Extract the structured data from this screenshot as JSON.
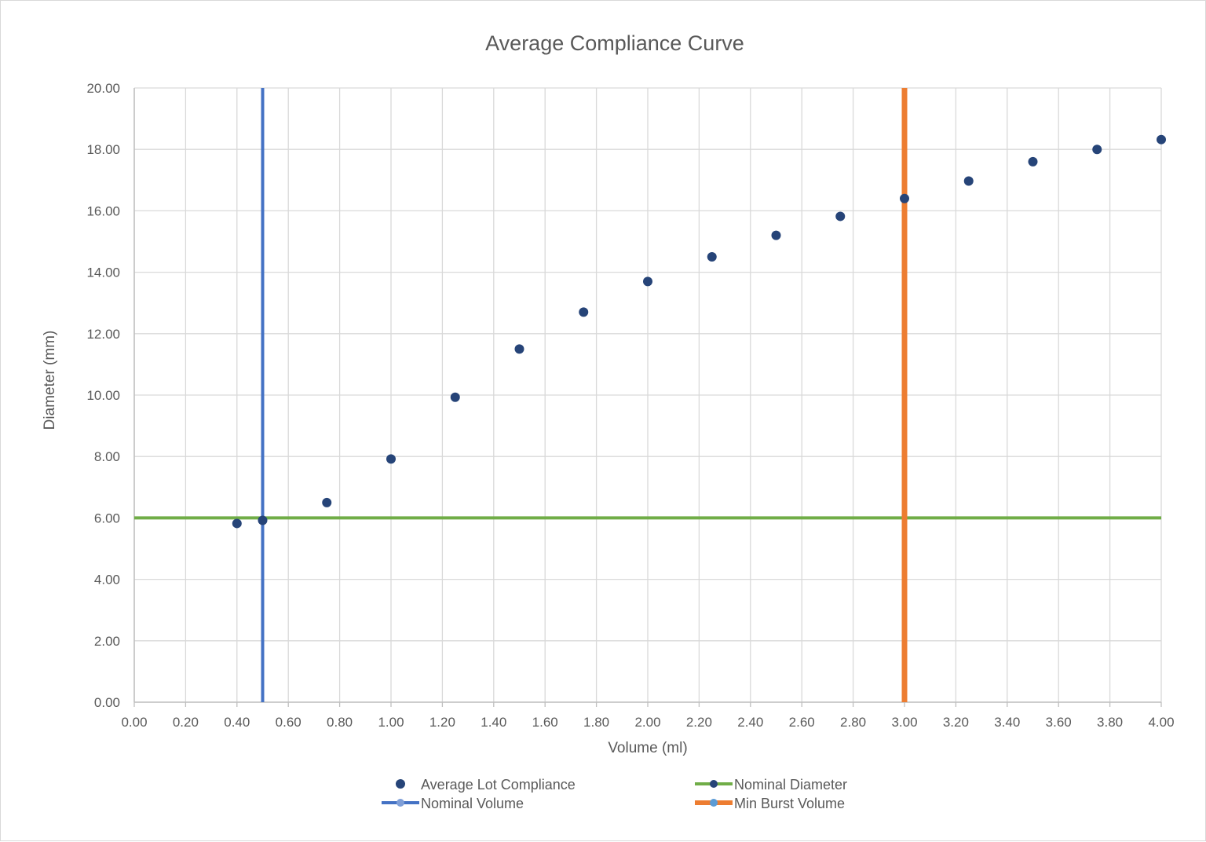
{
  "chart_data": {
    "type": "scatter",
    "title": "Average Compliance Curve",
    "xlabel": "Volume (ml)",
    "ylabel": "Diameter (mm)",
    "xlim": [
      0,
      4
    ],
    "ylim": [
      0,
      20
    ],
    "x_ticks": [
      "0.00",
      "0.20",
      "0.40",
      "0.60",
      "0.80",
      "1.00",
      "1.20",
      "1.40",
      "1.60",
      "1.80",
      "2.00",
      "2.20",
      "2.40",
      "2.60",
      "2.80",
      "3.00",
      "3.20",
      "3.40",
      "3.60",
      "3.80",
      "4.00"
    ],
    "y_ticks": [
      "0.00",
      "2.00",
      "4.00",
      "6.00",
      "8.00",
      "10.00",
      "12.00",
      "14.00",
      "16.00",
      "18.00",
      "20.00"
    ],
    "grid": true,
    "legend_position": "bottom",
    "series": [
      {
        "name": "Average Lot Compliance",
        "kind": "markers",
        "color": "#264478",
        "x": [
          0.4,
          0.5,
          0.75,
          1.0,
          1.25,
          1.5,
          1.75,
          2.0,
          2.25,
          2.5,
          2.75,
          3.0,
          3.25,
          3.5,
          3.75,
          4.0
        ],
        "y": [
          5.82,
          5.92,
          6.5,
          7.92,
          9.93,
          11.5,
          12.7,
          13.7,
          14.5,
          15.2,
          15.82,
          16.4,
          16.97,
          17.6,
          18.0,
          18.32
        ]
      },
      {
        "name": "Nominal Diameter",
        "kind": "line",
        "color": "#70ad47",
        "marker_color": "#264478",
        "x": [
          0,
          4
        ],
        "y": [
          6,
          6
        ]
      },
      {
        "name": "Nominal Volume",
        "kind": "line",
        "color": "#4472c4",
        "marker_color": "#7f9fd8",
        "x": [
          0.5,
          0.5
        ],
        "y": [
          0,
          20
        ]
      },
      {
        "name": "Min Burst Volume",
        "kind": "line",
        "color": "#ed7d31",
        "marker_color": "#5b9bd5",
        "x": [
          3.0,
          3.0
        ],
        "y": [
          0,
          20
        ]
      }
    ]
  }
}
